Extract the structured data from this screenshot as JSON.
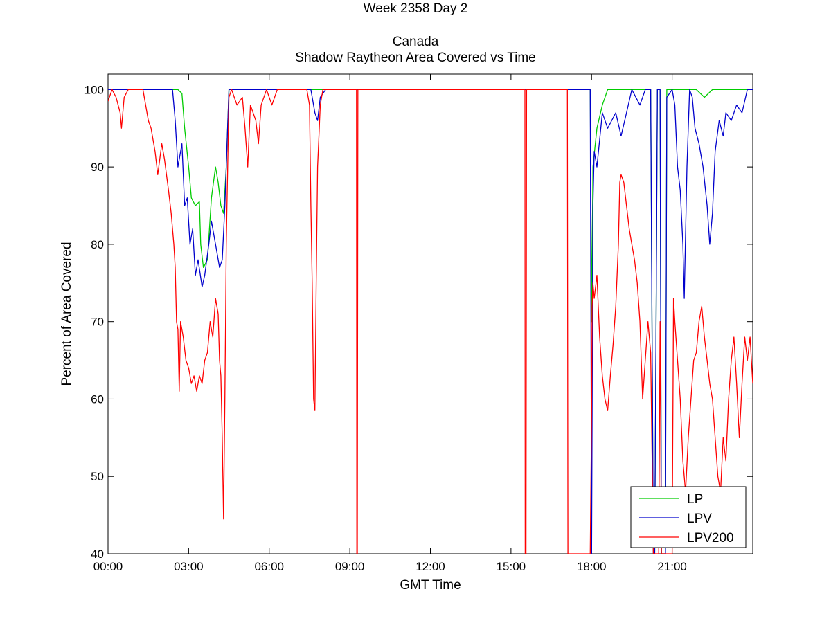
{
  "chart_data": {
    "type": "line",
    "title_lines": [
      "Week 2358 Day 2",
      "Canada",
      "Shadow Raytheon Area Covered vs Time"
    ],
    "xlabel": "GMT Time",
    "ylabel": "Percent of Area Covered",
    "xlim": [
      0,
      24
    ],
    "ylim": [
      40,
      102
    ],
    "x_tick_labels": [
      "00:00",
      "03:00",
      "06:00",
      "09:00",
      "12:00",
      "15:00",
      "18:00",
      "21:00"
    ],
    "x_tick_values": [
      0,
      3,
      6,
      9,
      12,
      15,
      18,
      21
    ],
    "y_ticks": [
      40,
      50,
      60,
      70,
      80,
      90,
      100
    ],
    "legend_position": "bottom-right",
    "series": [
      {
        "name": "LP",
        "color": "#00cc00",
        "points": [
          [
            0,
            100
          ],
          [
            2.6,
            100
          ],
          [
            2.75,
            99.5
          ],
          [
            2.85,
            95
          ],
          [
            3.0,
            90
          ],
          [
            3.1,
            86
          ],
          [
            3.25,
            85
          ],
          [
            3.4,
            85.5
          ],
          [
            3.45,
            80
          ],
          [
            3.55,
            77
          ],
          [
            3.7,
            78
          ],
          [
            3.85,
            86
          ],
          [
            4.0,
            90
          ],
          [
            4.1,
            88
          ],
          [
            4.2,
            85
          ],
          [
            4.3,
            84
          ],
          [
            4.4,
            90
          ],
          [
            4.45,
            95
          ],
          [
            4.5,
            100
          ],
          [
            17.95,
            100
          ],
          [
            18.0,
            70
          ],
          [
            18.05,
            90
          ],
          [
            18.2,
            95
          ],
          [
            18.4,
            98
          ],
          [
            18.6,
            100
          ],
          [
            20.2,
            100
          ],
          [
            20.25,
            70
          ],
          [
            20.3,
            40
          ],
          [
            20.35,
            40
          ],
          [
            20.4,
            70
          ],
          [
            20.45,
            100
          ],
          [
            20.55,
            100
          ],
          [
            20.6,
            40
          ],
          [
            20.75,
            40
          ],
          [
            20.8,
            100
          ],
          [
            21.9,
            100
          ],
          [
            22.2,
            99
          ],
          [
            22.5,
            100
          ],
          [
            24.0,
            100
          ]
        ]
      },
      {
        "name": "LPV",
        "color": "#0000cc",
        "points": [
          [
            0,
            100
          ],
          [
            2.4,
            100
          ],
          [
            2.5,
            96
          ],
          [
            2.6,
            90
          ],
          [
            2.75,
            93
          ],
          [
            2.85,
            85
          ],
          [
            2.95,
            86
          ],
          [
            3.05,
            80
          ],
          [
            3.15,
            82
          ],
          [
            3.25,
            76
          ],
          [
            3.35,
            78
          ],
          [
            3.5,
            74.5
          ],
          [
            3.6,
            76
          ],
          [
            3.75,
            80
          ],
          [
            3.85,
            83
          ],
          [
            4.0,
            80
          ],
          [
            4.15,
            77
          ],
          [
            4.25,
            78
          ],
          [
            4.35,
            85
          ],
          [
            4.45,
            95
          ],
          [
            4.5,
            100
          ],
          [
            7.55,
            100
          ],
          [
            7.7,
            97
          ],
          [
            7.8,
            96
          ],
          [
            7.9,
            99
          ],
          [
            8.1,
            100
          ],
          [
            8.5,
            100
          ],
          [
            17.95,
            100
          ],
          [
            18.0,
            40
          ],
          [
            18.05,
            85
          ],
          [
            18.1,
            92
          ],
          [
            18.2,
            90
          ],
          [
            18.4,
            97
          ],
          [
            18.6,
            95
          ],
          [
            18.9,
            97
          ],
          [
            19.1,
            94
          ],
          [
            19.3,
            97
          ],
          [
            19.5,
            100
          ],
          [
            19.8,
            98
          ],
          [
            20.0,
            100
          ],
          [
            20.2,
            100
          ],
          [
            20.25,
            70
          ],
          [
            20.3,
            40
          ],
          [
            20.35,
            40
          ],
          [
            20.4,
            70
          ],
          [
            20.45,
            100
          ],
          [
            20.55,
            100
          ],
          [
            20.6,
            40
          ],
          [
            20.75,
            40
          ],
          [
            20.8,
            99
          ],
          [
            21.0,
            100
          ],
          [
            21.1,
            98
          ],
          [
            21.2,
            90
          ],
          [
            21.3,
            87
          ],
          [
            21.4,
            80
          ],
          [
            21.45,
            73
          ],
          [
            21.55,
            90
          ],
          [
            21.65,
            100
          ],
          [
            21.75,
            99
          ],
          [
            21.85,
            95
          ],
          [
            22.0,
            93
          ],
          [
            22.15,
            90
          ],
          [
            22.3,
            85
          ],
          [
            22.4,
            80
          ],
          [
            22.5,
            84
          ],
          [
            22.6,
            92
          ],
          [
            22.75,
            96
          ],
          [
            22.9,
            94
          ],
          [
            23.0,
            97
          ],
          [
            23.2,
            96
          ],
          [
            23.4,
            98
          ],
          [
            23.6,
            97
          ],
          [
            23.8,
            100
          ],
          [
            24.0,
            100
          ]
        ]
      },
      {
        "name": "LPV200",
        "color": "#ff0000",
        "points": [
          [
            0,
            98.5
          ],
          [
            0.15,
            100
          ],
          [
            0.3,
            99
          ],
          [
            0.45,
            97
          ],
          [
            0.5,
            95
          ],
          [
            0.6,
            99
          ],
          [
            0.75,
            100
          ],
          [
            1.3,
            100
          ],
          [
            1.5,
            96
          ],
          [
            1.6,
            95
          ],
          [
            1.75,
            92
          ],
          [
            1.85,
            89
          ],
          [
            2.0,
            93
          ],
          [
            2.1,
            91
          ],
          [
            2.25,
            87
          ],
          [
            2.35,
            84
          ],
          [
            2.45,
            80
          ],
          [
            2.5,
            77
          ],
          [
            2.55,
            70
          ],
          [
            2.6,
            69
          ],
          [
            2.65,
            61
          ],
          [
            2.7,
            70
          ],
          [
            2.8,
            68
          ],
          [
            2.9,
            65
          ],
          [
            3.0,
            64
          ],
          [
            3.1,
            62
          ],
          [
            3.2,
            63
          ],
          [
            3.3,
            61
          ],
          [
            3.4,
            63
          ],
          [
            3.5,
            62
          ],
          [
            3.6,
            65
          ],
          [
            3.7,
            66
          ],
          [
            3.8,
            70
          ],
          [
            3.9,
            68
          ],
          [
            4.0,
            73
          ],
          [
            4.1,
            71
          ],
          [
            4.15,
            65
          ],
          [
            4.2,
            63
          ],
          [
            4.25,
            55
          ],
          [
            4.3,
            44.5
          ],
          [
            4.35,
            60
          ],
          [
            4.4,
            80
          ],
          [
            4.5,
            99
          ],
          [
            4.6,
            100
          ],
          [
            4.8,
            98
          ],
          [
            5.0,
            99
          ],
          [
            5.1,
            95
          ],
          [
            5.2,
            90
          ],
          [
            5.3,
            98
          ],
          [
            5.5,
            96
          ],
          [
            5.6,
            93
          ],
          [
            5.7,
            98
          ],
          [
            5.9,
            100
          ],
          [
            6.1,
            98
          ],
          [
            6.3,
            100
          ],
          [
            7.4,
            100
          ],
          [
            7.5,
            98
          ],
          [
            7.55,
            85
          ],
          [
            7.6,
            75
          ],
          [
            7.65,
            60
          ],
          [
            7.7,
            58.5
          ],
          [
            7.75,
            75
          ],
          [
            7.8,
            90
          ],
          [
            7.9,
            98
          ],
          [
            8.0,
            100
          ],
          [
            9.25,
            100
          ],
          [
            9.26,
            40
          ],
          [
            9.28,
            40
          ],
          [
            9.3,
            100
          ],
          [
            15.52,
            100
          ],
          [
            15.53,
            40
          ],
          [
            15.56,
            40
          ],
          [
            15.58,
            100
          ],
          [
            17.1,
            100
          ],
          [
            17.12,
            40
          ],
          [
            17.95,
            40
          ],
          [
            18.0,
            58.5
          ],
          [
            18.02,
            72
          ],
          [
            18.05,
            75
          ],
          [
            18.1,
            73
          ],
          [
            18.2,
            76
          ],
          [
            18.3,
            68
          ],
          [
            18.4,
            63
          ],
          [
            18.5,
            60
          ],
          [
            18.6,
            58.5
          ],
          [
            18.7,
            63
          ],
          [
            18.8,
            67
          ],
          [
            18.9,
            72
          ],
          [
            19.0,
            80
          ],
          [
            19.05,
            88
          ],
          [
            19.1,
            89
          ],
          [
            19.2,
            88
          ],
          [
            19.3,
            85
          ],
          [
            19.4,
            82
          ],
          [
            19.5,
            80
          ],
          [
            19.6,
            78
          ],
          [
            19.7,
            75
          ],
          [
            19.8,
            70
          ],
          [
            19.9,
            60
          ],
          [
            20.0,
            65
          ],
          [
            20.1,
            70
          ],
          [
            20.2,
            66
          ],
          [
            20.3,
            40
          ],
          [
            20.5,
            40
          ],
          [
            20.55,
            70
          ],
          [
            20.6,
            40
          ],
          [
            21.0,
            40
          ],
          [
            21.05,
            73
          ],
          [
            21.1,
            70
          ],
          [
            21.2,
            65
          ],
          [
            21.3,
            60
          ],
          [
            21.4,
            52
          ],
          [
            21.5,
            48
          ],
          [
            21.6,
            55
          ],
          [
            21.7,
            60
          ],
          [
            21.8,
            65
          ],
          [
            21.9,
            66
          ],
          [
            22.0,
            70
          ],
          [
            22.1,
            72
          ],
          [
            22.2,
            68
          ],
          [
            22.3,
            65
          ],
          [
            22.4,
            62
          ],
          [
            22.5,
            60
          ],
          [
            22.6,
            55
          ],
          [
            22.7,
            50
          ],
          [
            22.8,
            48
          ],
          [
            22.9,
            55
          ],
          [
            23.0,
            52
          ],
          [
            23.1,
            60
          ],
          [
            23.2,
            65
          ],
          [
            23.3,
            68
          ],
          [
            23.4,
            62
          ],
          [
            23.5,
            55
          ],
          [
            23.6,
            62
          ],
          [
            23.7,
            68
          ],
          [
            23.8,
            65
          ],
          [
            23.9,
            68
          ],
          [
            24.0,
            62
          ]
        ]
      }
    ]
  }
}
